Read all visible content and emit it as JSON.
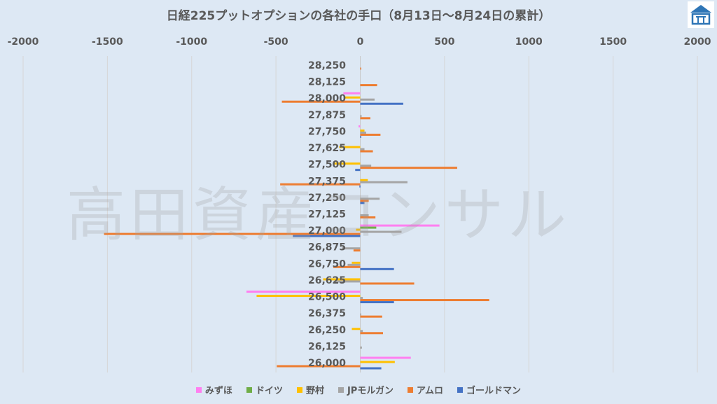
{
  "chart_data": {
    "type": "bar",
    "orientation": "horizontal",
    "title": "日経225プットオプションの各社の手口（8月13日～8月24日の累計）",
    "watermark": "高田資産コンサル",
    "xlim": [
      -2000,
      2000
    ],
    "xticks": [
      "-2000",
      "-1500",
      "-1000",
      "-500",
      "0",
      "500",
      "1000",
      "1500",
      "2000"
    ],
    "xtick_values": [
      -2000,
      -1500,
      -1000,
      -500,
      0,
      500,
      1000,
      1500,
      2000
    ],
    "grid": true,
    "legend_position": "bottom",
    "categories": [
      "28,250",
      "28,125",
      "28,000",
      "27,875",
      "27,750",
      "27,625",
      "27,500",
      "27,375",
      "27,250",
      "27,125",
      "27,000",
      "26,875",
      "26,750",
      "26,625",
      "26,500",
      "26,375",
      "26,250",
      "26,125",
      "26,000"
    ],
    "series": [
      {
        "name": "みずほ",
        "color": "#ff7ff0",
        "values": [
          0,
          0,
          -100,
          0,
          -10,
          0,
          0,
          0,
          0,
          0,
          470,
          0,
          0,
          0,
          -675,
          0,
          0,
          0,
          300
        ]
      },
      {
        "name": "ドイツ",
        "color": "#70ad47",
        "values": [
          0,
          0,
          0,
          0,
          0,
          0,
          0,
          0,
          0,
          0,
          95,
          0,
          0,
          0,
          0,
          0,
          0,
          0,
          0
        ]
      },
      {
        "name": "野村",
        "color": "#ffc000",
        "values": [
          0,
          0,
          -90,
          0,
          25,
          -125,
          -160,
          45,
          0,
          0,
          -25,
          0,
          -50,
          -220,
          -615,
          0,
          -50,
          0,
          205
        ]
      },
      {
        "name": "JPモルガン",
        "color": "#a5a5a5",
        "values": [
          0,
          0,
          85,
          8,
          35,
          25,
          65,
          280,
          115,
          50,
          245,
          -110,
          -75,
          -150,
          15,
          2,
          15,
          10,
          0
        ]
      },
      {
        "name": "アムロ",
        "color": "#ed7d31",
        "values": [
          5,
          100,
          -465,
          60,
          120,
          75,
          575,
          -475,
          50,
          90,
          -1520,
          -40,
          -160,
          320,
          765,
          130,
          135,
          0,
          -495
        ]
      },
      {
        "name": "ゴールドマン",
        "color": "#4472c4",
        "values": [
          0,
          0,
          255,
          0,
          5,
          0,
          -30,
          -5,
          25,
          0,
          -400,
          0,
          200,
          0,
          200,
          0,
          0,
          0,
          125
        ]
      }
    ]
  }
}
